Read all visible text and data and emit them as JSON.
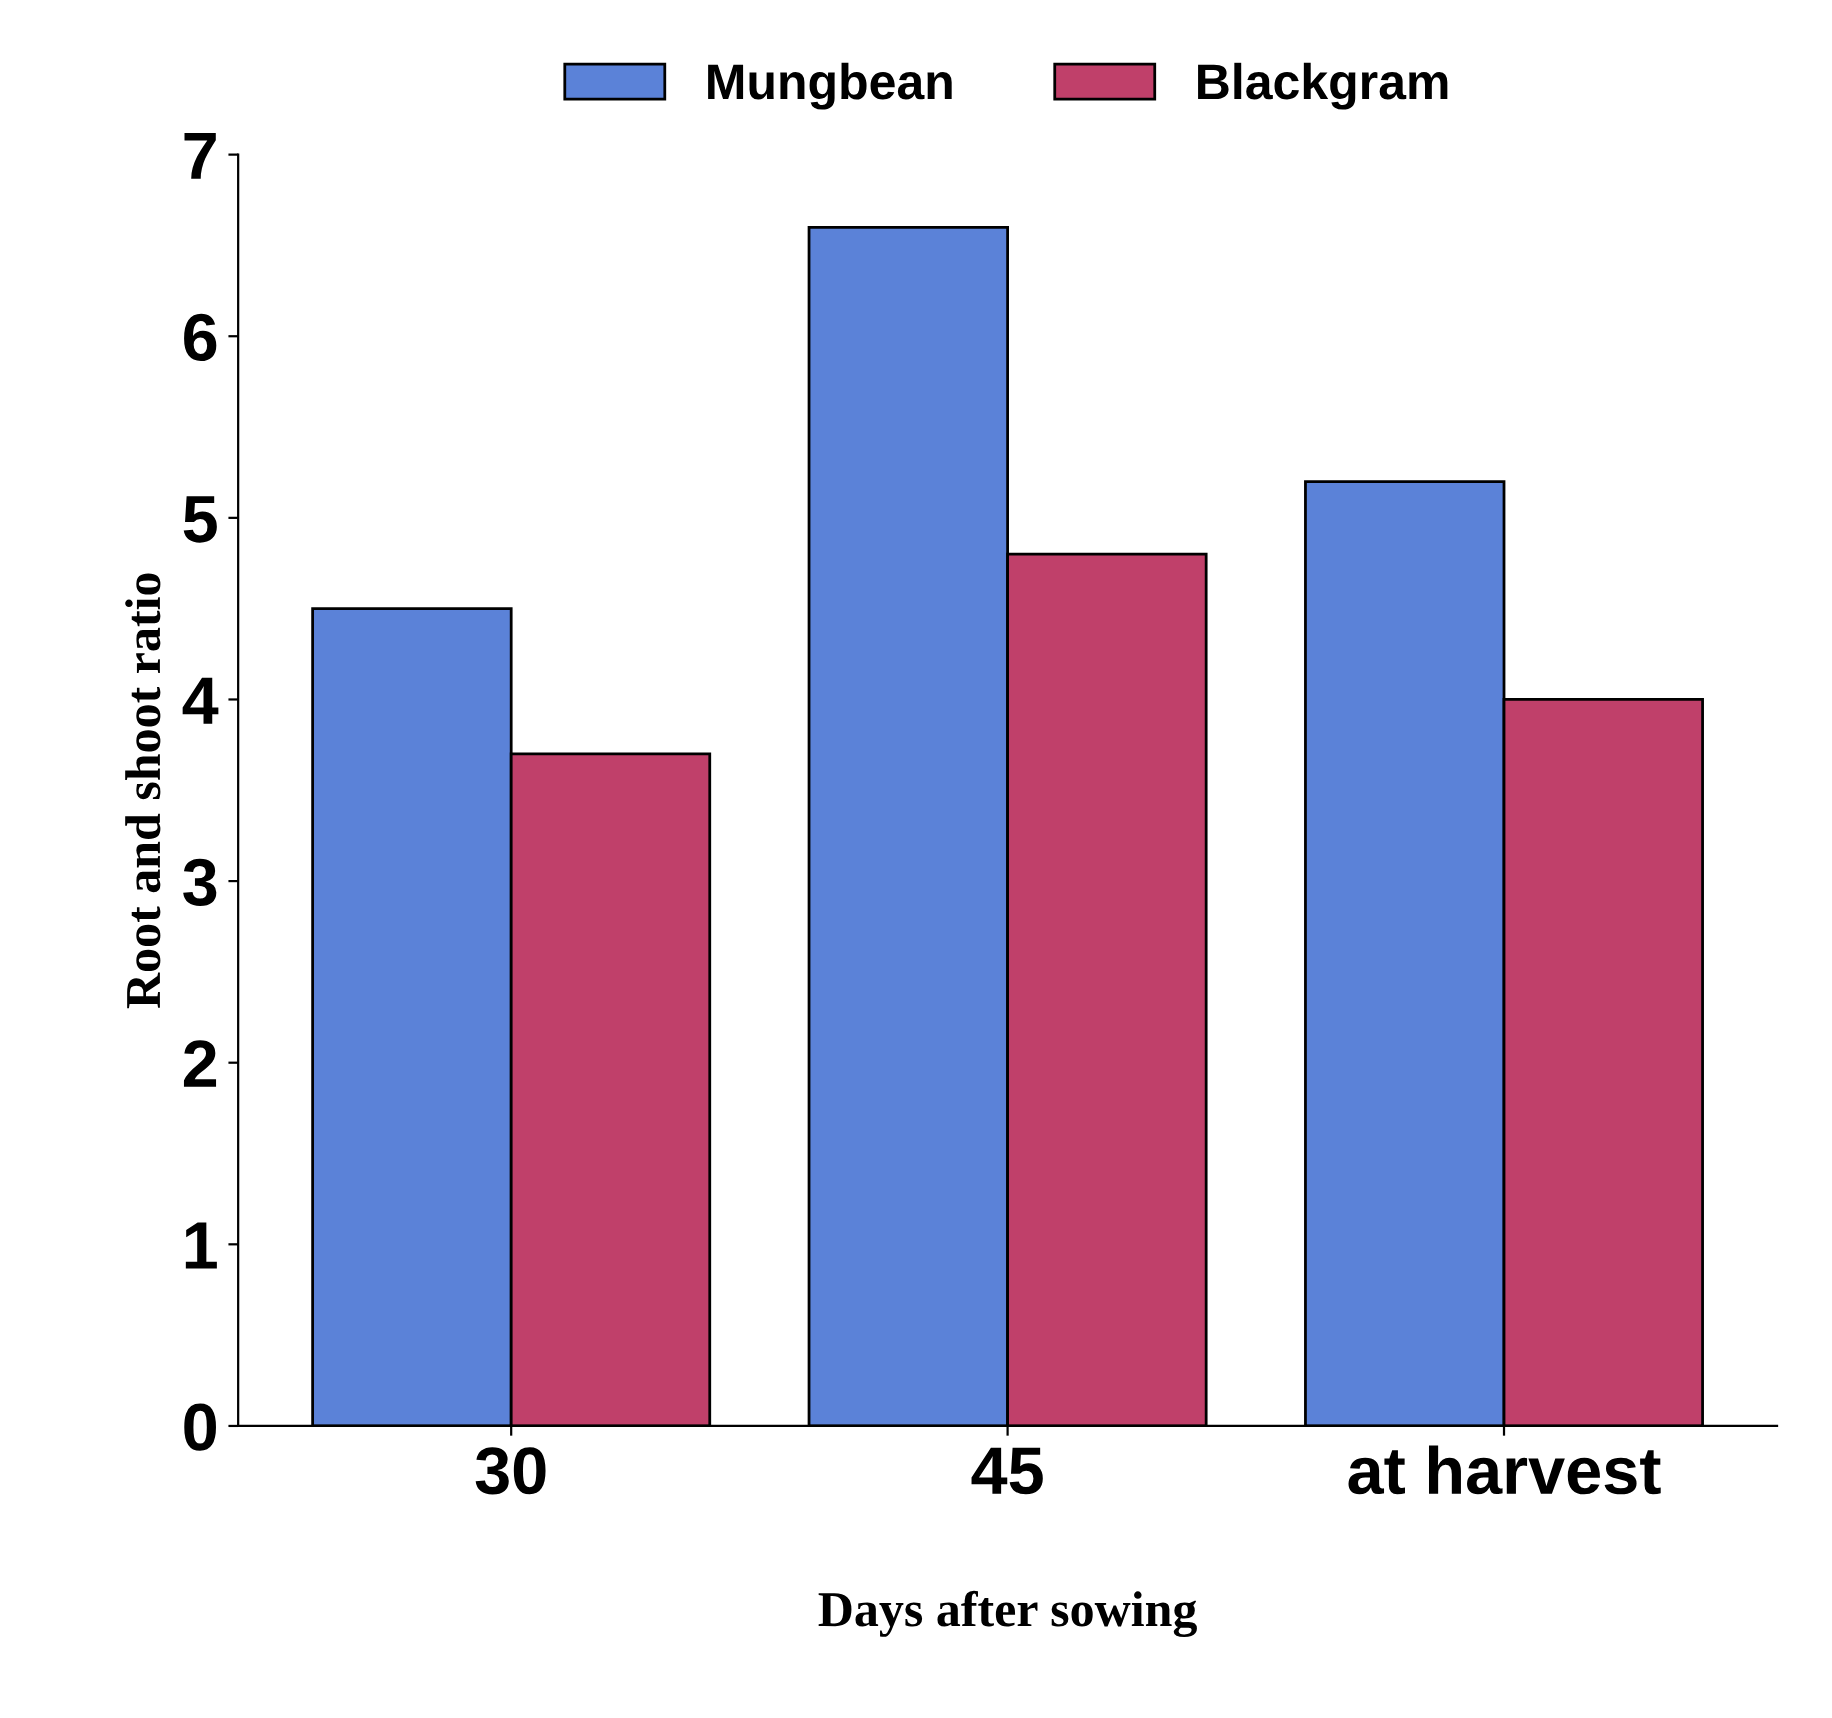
{
  "chart_data": {
    "type": "bar",
    "xlabel": "Days after sowing",
    "ylabel": "Root and shoot ratio",
    "categories": [
      "30",
      "45",
      "at harvest"
    ],
    "series": [
      {
        "name": "Mungbean",
        "color": "#5b82d8",
        "values": [
          4.5,
          6.6,
          5.2
        ]
      },
      {
        "name": "Blackgram",
        "color": "#c0406a",
        "values": [
          3.7,
          4.8,
          4.0
        ]
      }
    ],
    "ylim": [
      0,
      7
    ],
    "yticks": [
      0,
      1,
      2,
      3,
      4,
      5,
      6,
      7
    ],
    "grid": false,
    "legend": "top"
  }
}
